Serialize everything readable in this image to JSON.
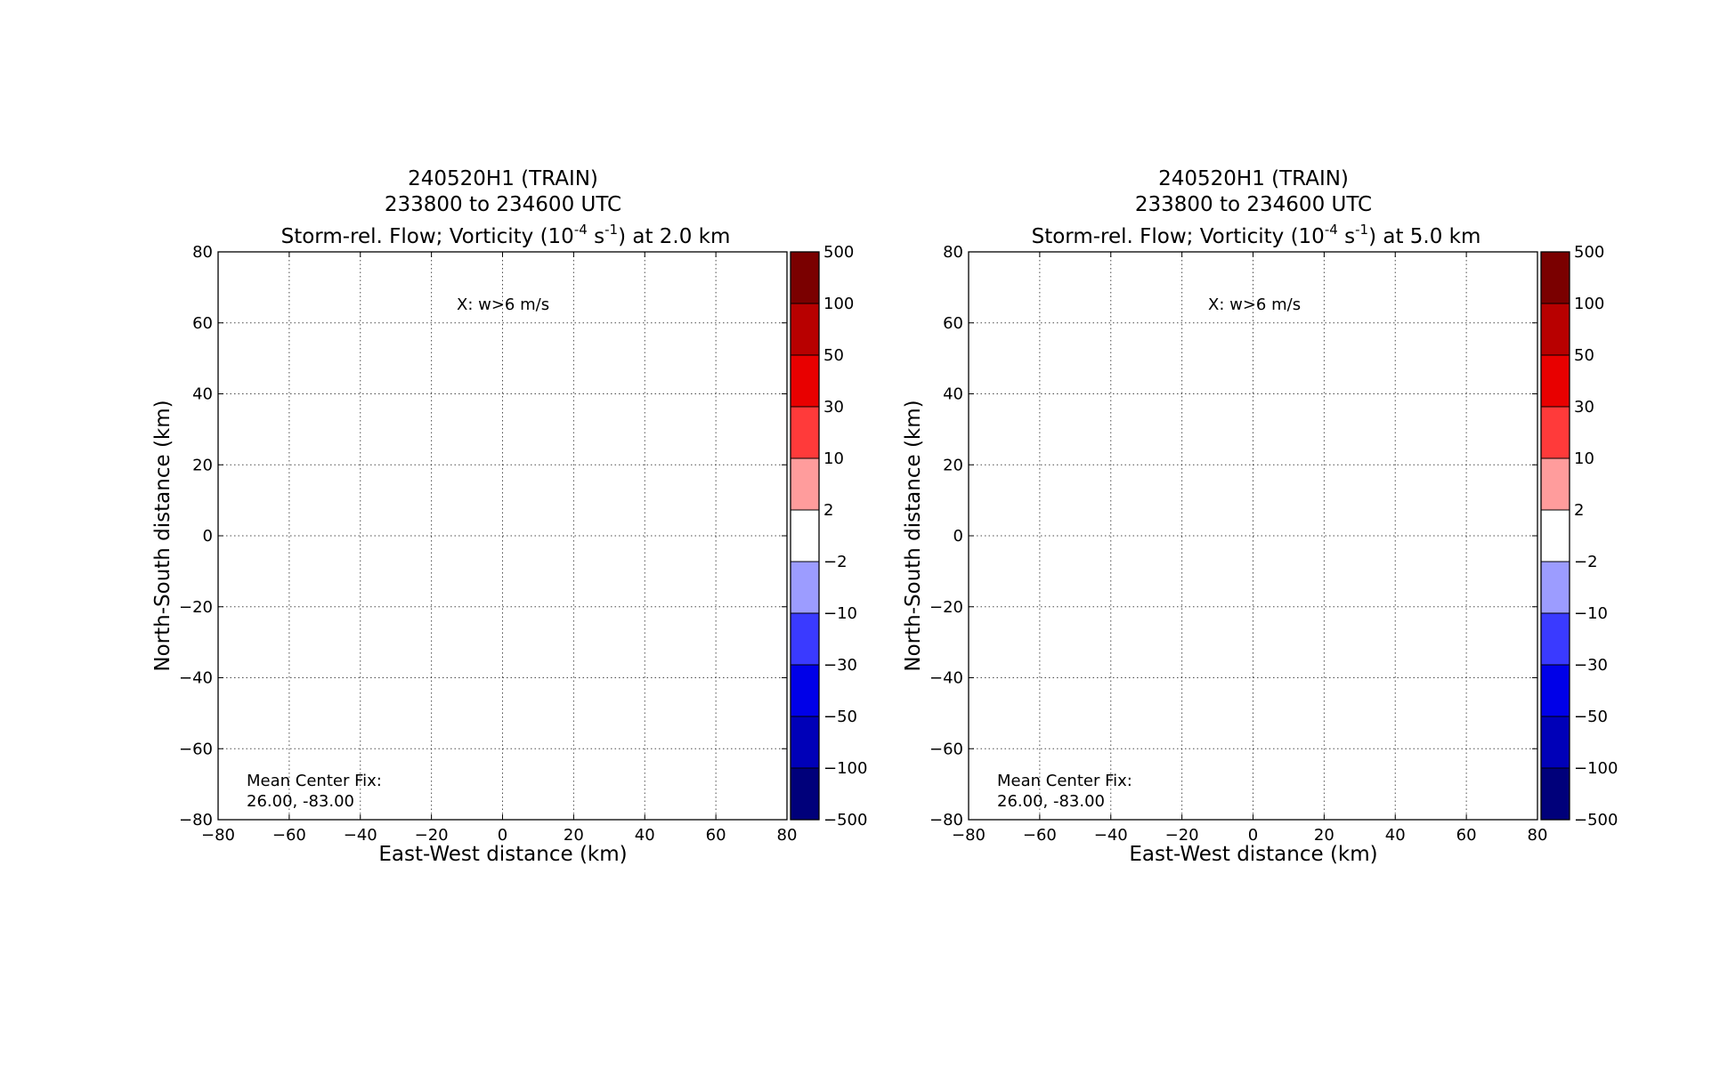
{
  "chart_data": [
    {
      "type": "heatmap",
      "title_line1": "240520H1 (TRAIN)",
      "title_line2": "233800 to 234600 UTC",
      "title_line3_pre": "Storm-rel. Flow; Vorticity (10",
      "title_line3_sup1": "-4",
      "title_line3_mid": " s",
      "title_line3_sup2": "-1",
      "title_line3_post": ") at 2.0 km",
      "xlabel": "East-West distance (km)",
      "ylabel": "North-South distance (km)",
      "xlim": [
        -80,
        80
      ],
      "ylim": [
        -80,
        80
      ],
      "xticks": [
        "−80",
        "−60",
        "−40",
        "−20",
        "0",
        "20",
        "40",
        "60",
        "80"
      ],
      "yticks": [
        "80",
        "60",
        "40",
        "20",
        "0",
        "−20",
        "−40",
        "−60",
        "−80"
      ],
      "grid": true,
      "annotation_top": "X: w>6 m/s",
      "annotation_bottom_line1": "Mean Center Fix:",
      "annotation_bottom_line2": "26.00, -83.00",
      "values": []
    },
    {
      "type": "heatmap",
      "title_line1": "240520H1 (TRAIN)",
      "title_line2": "233800 to 234600 UTC",
      "title_line3_pre": "Storm-rel. Flow; Vorticity (10",
      "title_line3_sup1": "-4",
      "title_line3_mid": " s",
      "title_line3_sup2": "-1",
      "title_line3_post": ") at 5.0 km",
      "xlabel": "East-West distance (km)",
      "ylabel": "North-South distance (km)",
      "xlim": [
        -80,
        80
      ],
      "ylim": [
        -80,
        80
      ],
      "xticks": [
        "−80",
        "−60",
        "−40",
        "−20",
        "0",
        "20",
        "40",
        "60",
        "80"
      ],
      "yticks": [
        "80",
        "60",
        "40",
        "20",
        "0",
        "−20",
        "−40",
        "−60",
        "−80"
      ],
      "grid": true,
      "annotation_top": "X: w>6 m/s",
      "annotation_bottom_line1": "Mean Center Fix:",
      "annotation_bottom_line2": "26.00, -83.00",
      "values": []
    }
  ],
  "colorbar": {
    "labels": [
      "500",
      "100",
      "50",
      "30",
      "10",
      "2",
      "−2",
      "−10",
      "−30",
      "−50",
      "−100",
      "−500"
    ],
    "colors": [
      "#7a0000",
      "#b80000",
      "#e80000",
      "#ff3a3a",
      "#ff9c9c",
      "#ffffff",
      "#9c9cff",
      "#3a3aff",
      "#0000e8",
      "#0000b8",
      "#00007a"
    ]
  }
}
